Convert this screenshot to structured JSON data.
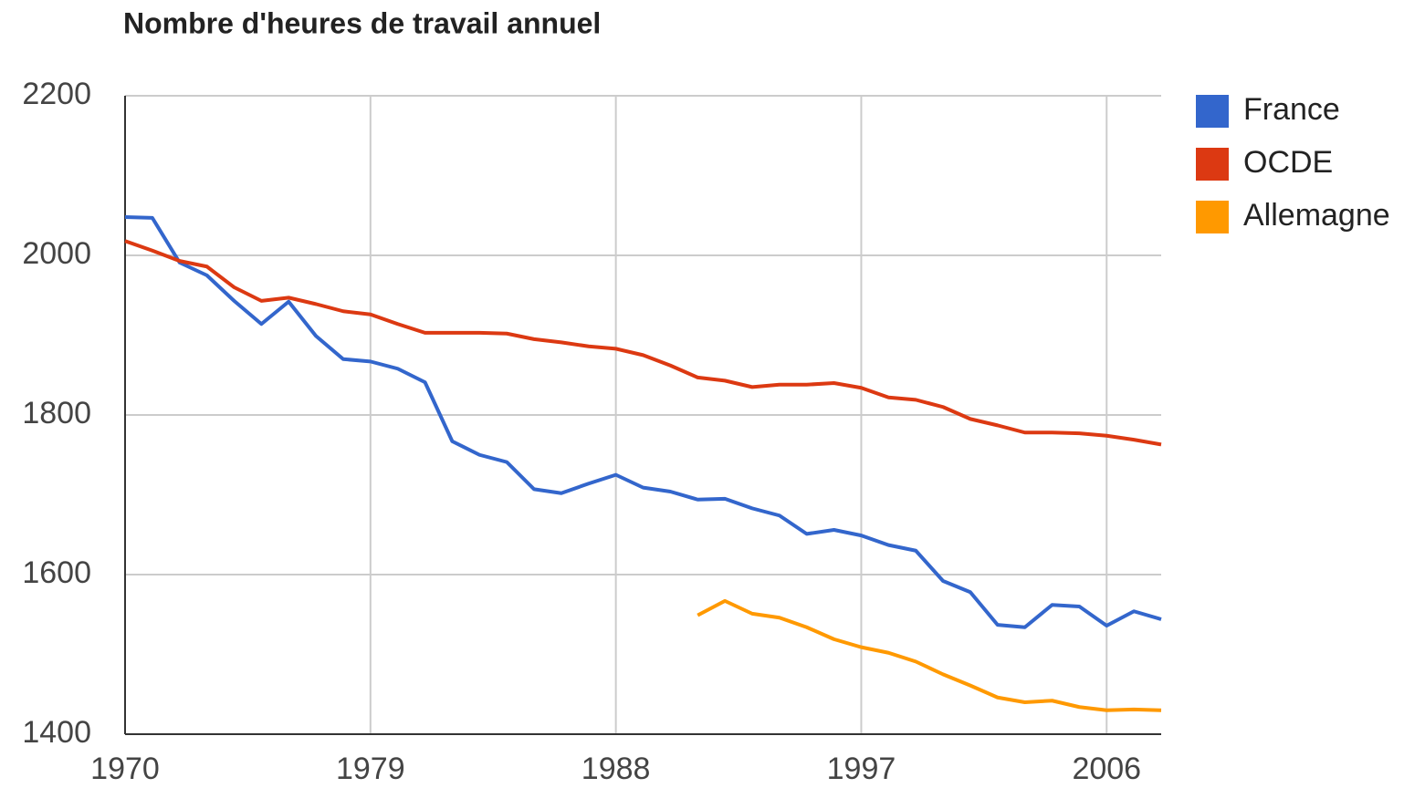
{
  "chart_data": {
    "type": "line",
    "title": "Nombre d'heures de travail annuel",
    "x": [
      1970,
      1971,
      1972,
      1973,
      1974,
      1975,
      1976,
      1977,
      1978,
      1979,
      1980,
      1981,
      1982,
      1983,
      1984,
      1985,
      1986,
      1987,
      1988,
      1989,
      1990,
      1991,
      1992,
      1993,
      1994,
      1995,
      1996,
      1997,
      1998,
      1999,
      2000,
      2001,
      2002,
      2003,
      2004,
      2005,
      2006,
      2007,
      2008
    ],
    "series": [
      {
        "name": "France",
        "color": "#3366cc",
        "values": [
          2048,
          2047,
          1991,
          1975,
          1943,
          1914,
          1942,
          1899,
          1870,
          1867,
          1858,
          1841,
          1767,
          1750,
          1741,
          1707,
          1702,
          1714,
          1725,
          1709,
          1704,
          1694,
          1695,
          1683,
          1674,
          1651,
          1656,
          1649,
          1637,
          1630,
          1592,
          1578,
          1537,
          1534,
          1562,
          1560,
          1536,
          1554,
          1544
        ]
      },
      {
        "name": "OCDE",
        "color": "#dc3912",
        "values": [
          2018,
          2006,
          1993,
          1986,
          1960,
          1943,
          1947,
          1939,
          1930,
          1926,
          1914,
          1903,
          1903,
          1903,
          1902,
          1895,
          1891,
          1886,
          1883,
          1875,
          1862,
          1847,
          1843,
          1835,
          1838,
          1838,
          1840,
          1834,
          1822,
          1819,
          1810,
          1795,
          1787,
          1778,
          1778,
          1777,
          1774,
          1769,
          1763
        ]
      },
      {
        "name": "Allemagne",
        "color": "#ff9900",
        "values": [
          null,
          null,
          null,
          null,
          null,
          null,
          null,
          null,
          null,
          null,
          null,
          null,
          null,
          null,
          null,
          null,
          null,
          null,
          null,
          null,
          null,
          1549,
          1567,
          1551,
          1546,
          1534,
          1519,
          1509,
          1502,
          1491,
          1475,
          1461,
          1446,
          1440,
          1442,
          1434,
          1430,
          1431,
          1430
        ]
      }
    ],
    "xlim": [
      1970,
      2008
    ],
    "xticks": [
      1970,
      1979,
      1988,
      1997,
      2006
    ],
    "ylim": [
      1400,
      2200
    ],
    "yticks": [
      1400,
      1600,
      1800,
      2000,
      2200
    ],
    "grid": true,
    "legend": "right"
  }
}
